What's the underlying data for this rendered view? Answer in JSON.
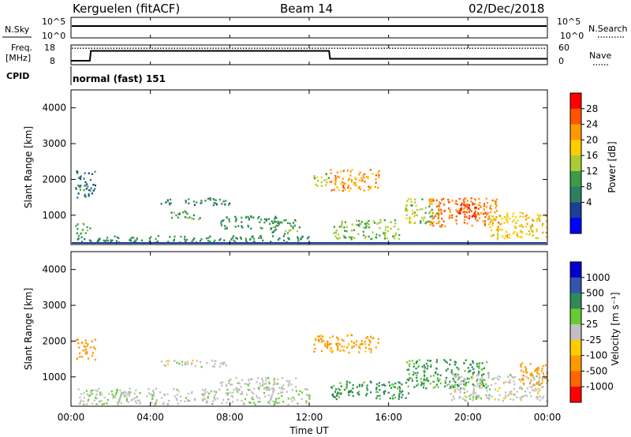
{
  "header": {
    "station": "Kerguelen (fitACF)",
    "beam": "Beam 14",
    "date": "02/Dec/2018"
  },
  "noise_panel": {
    "left_label": "N.Sky",
    "left_ticks": [
      "10^5",
      "10^0"
    ],
    "right_ticks": [
      "10^5",
      "10^0"
    ],
    "right_label": "N.Search"
  },
  "freq_panel": {
    "label_line1": "Freq.",
    "label_line2": "[MHz]",
    "left_ticks": [
      "18",
      "8"
    ],
    "right_ticks": [
      "60",
      "0"
    ],
    "right_label": "Nave",
    "cpid_label": "CPID",
    "cpid_text": "normal (fast) 151"
  },
  "x_axis": {
    "ticks": [
      "00:00",
      "04:00",
      "08:00",
      "12:00",
      "16:00",
      "20:00",
      "00:00"
    ],
    "title": "Time UT"
  },
  "range_axis": {
    "title": "Slant Range [km]",
    "ticks": [
      "4000",
      "3000",
      "2000",
      "1000"
    ]
  },
  "power_colorbar": {
    "title": "Power [dB]",
    "ticks": [
      "28",
      "24",
      "20",
      "16",
      "12",
      "8",
      "4"
    ],
    "colors": [
      "#ff0000",
      "#ff5500",
      "#ff9900",
      "#ffcc00",
      "#aacc33",
      "#3a9b4a",
      "#2f7f5f",
      "#1a3f99",
      "#0000ff"
    ]
  },
  "velocity_colorbar": {
    "title": "Velocity [m s⁻¹]",
    "ticks": [
      "1000",
      "500",
      "100",
      "25",
      "-25",
      "-100",
      "-500",
      "-1000"
    ],
    "colors": [
      "#0000cc",
      "#3355aa",
      "#2e8b57",
      "#66cc33",
      "#c0c0c0",
      "#ffcc00",
      "#ff9900",
      "#ff6600",
      "#ff0000"
    ]
  },
  "chart_data": {
    "type": "heatmap",
    "x": [
      "00:00",
      "04:00",
      "08:00",
      "12:00",
      "16:00",
      "20:00",
      "00:00"
    ],
    "ylim": [
      180,
      4500
    ],
    "ylabel": "Slant Range [km]",
    "xlabel": "Time UT",
    "nave_series": {
      "name": "Nave",
      "value": 50
    },
    "freq_series": {
      "name": "Freq.",
      "points": [
        {
          "t": 0.0,
          "mhz": 10
        },
        {
          "t": 0.95,
          "mhz": 10
        },
        {
          "t": 1.0,
          "mhz": 15
        },
        {
          "t": 13.0,
          "mhz": 15
        },
        {
          "t": 13.05,
          "mhz": 11
        },
        {
          "t": 24.0,
          "mhz": 11
        }
      ]
    },
    "power_regions": [
      {
        "t0": 0.2,
        "t1": 1.2,
        "r0": 1500,
        "r1": 2300,
        "db": 6
      },
      {
        "t0": 0.2,
        "t1": 1.0,
        "r0": 500,
        "r1": 800,
        "db": 10
      },
      {
        "t0": 0.3,
        "t1": 12.0,
        "r0": 250,
        "r1": 450,
        "db": 8
      },
      {
        "t0": 4.5,
        "t1": 8.0,
        "r0": 1300,
        "r1": 1500,
        "db": 7
      },
      {
        "t0": 5.0,
        "t1": 6.5,
        "r0": 900,
        "r1": 1150,
        "db": 10
      },
      {
        "t0": 7.5,
        "t1": 10.5,
        "r0": 650,
        "r1": 1000,
        "db": 8
      },
      {
        "t0": 10.0,
        "t1": 11.5,
        "r0": 500,
        "r1": 900,
        "db": 10
      },
      {
        "t0": 12.2,
        "t1": 13.0,
        "r0": 1800,
        "r1": 2200,
        "db": 14
      },
      {
        "t0": 13.0,
        "t1": 15.5,
        "r0": 1700,
        "r1": 2300,
        "db": 22
      },
      {
        "t0": 13.2,
        "t1": 16.5,
        "r0": 350,
        "r1": 900,
        "db": 12
      },
      {
        "t0": 16.8,
        "t1": 18.5,
        "r0": 800,
        "r1": 1500,
        "db": 14
      },
      {
        "t0": 18.0,
        "t1": 21.5,
        "r0": 700,
        "r1": 1500,
        "db": 24
      },
      {
        "t0": 19.5,
        "t1": 20.5,
        "r0": 900,
        "r1": 1400,
        "db": 28
      },
      {
        "t0": 21.0,
        "t1": 24.0,
        "r0": 350,
        "r1": 1100,
        "db": 18
      }
    ],
    "velocity_regions": [
      {
        "t0": 0.2,
        "t1": 1.2,
        "r0": 1500,
        "r1": 2100,
        "ms": -300
      },
      {
        "t0": 0.3,
        "t1": 12.0,
        "r0": 250,
        "r1": 700,
        "ms": 10
      },
      {
        "t0": 4.5,
        "t1": 8.0,
        "r0": 1300,
        "r1": 1500,
        "ms": 0
      },
      {
        "t0": 7.5,
        "t1": 11.5,
        "r0": 650,
        "r1": 1000,
        "ms": 5
      },
      {
        "t0": 12.2,
        "t1": 15.5,
        "r0": 1700,
        "r1": 2200,
        "ms": -150
      },
      {
        "t0": 13.0,
        "t1": 17.0,
        "r0": 400,
        "r1": 900,
        "ms": 150
      },
      {
        "t0": 16.8,
        "t1": 21.0,
        "r0": 700,
        "r1": 1500,
        "ms": 120
      },
      {
        "t0": 19.0,
        "t1": 24.0,
        "r0": 350,
        "r1": 1100,
        "ms": 0
      },
      {
        "t0": 22.5,
        "t1": 24.0,
        "r0": 800,
        "r1": 1400,
        "ms": -200
      }
    ]
  }
}
